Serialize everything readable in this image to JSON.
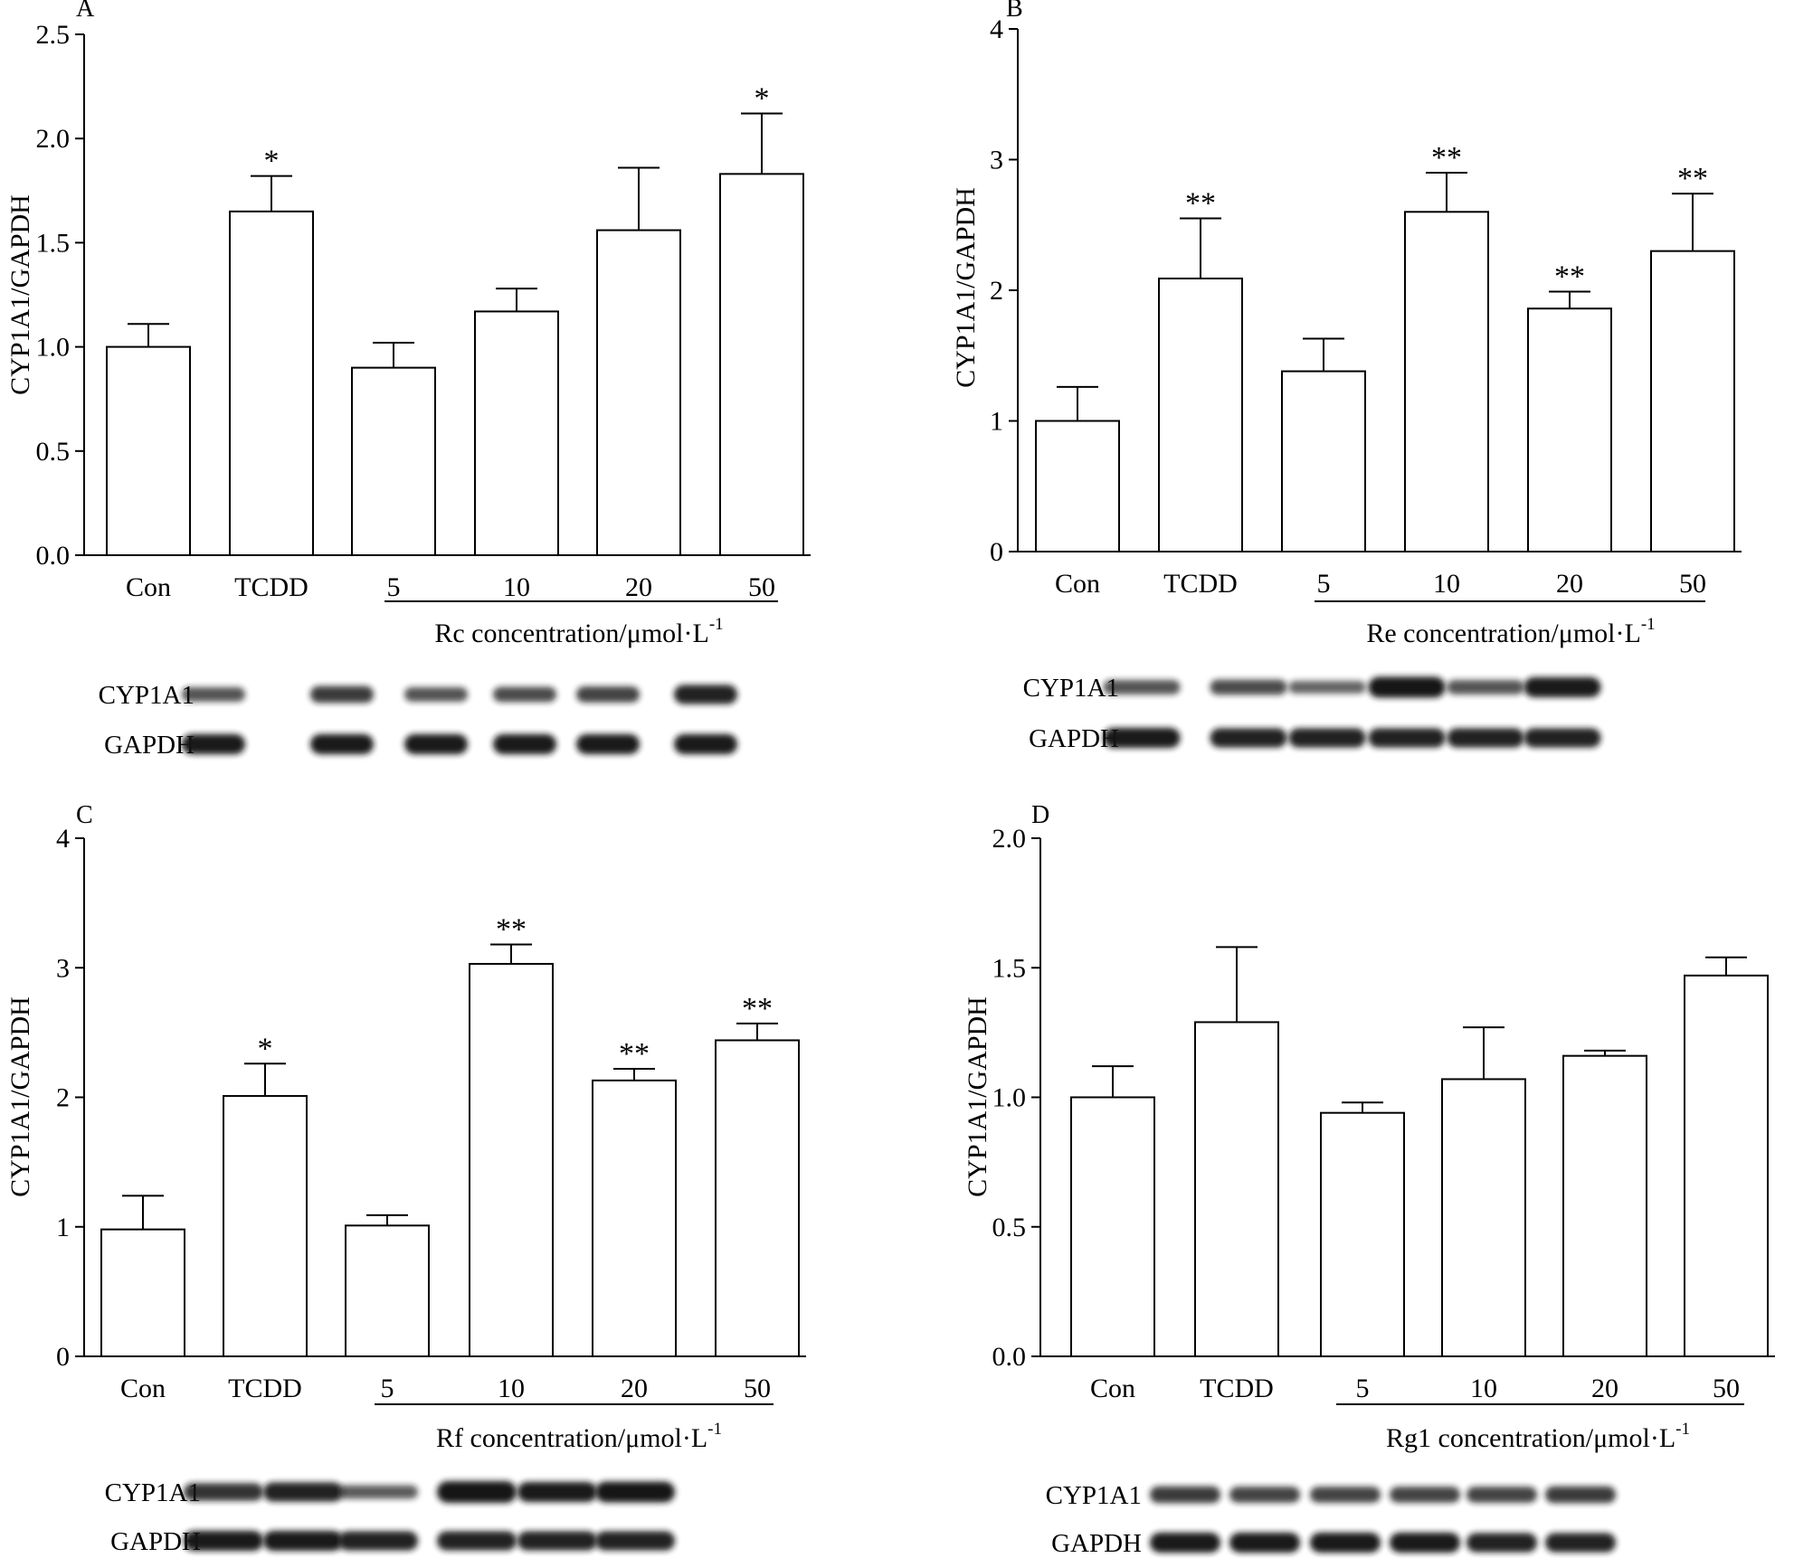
{
  "figure_description_colors": {
    "bar_fill": "#ffffff",
    "stroke": "#000000",
    "band": "#151515"
  },
  "chart_data": [
    {
      "panel": "A",
      "type": "bar",
      "ylabel": "CYP1A1/GAPDH",
      "xlabel": "Rc concentration/μmol·L",
      "xlabel_superscript": "-1",
      "categories": [
        "Con",
        "TCDD",
        "5",
        "10",
        "20",
        "50"
      ],
      "values": [
        1.0,
        1.65,
        0.9,
        1.17,
        1.56,
        1.83
      ],
      "errors": [
        0.11,
        0.17,
        0.12,
        0.11,
        0.3,
        0.29
      ],
      "significance": [
        "",
        "*",
        "",
        "",
        "",
        "*"
      ],
      "ylim": [
        0,
        2.5
      ],
      "yticks": [
        0.0,
        0.5,
        1.0,
        1.5,
        2.0,
        2.5
      ],
      "ytick_labels": [
        "0.0",
        "0.5",
        "1.0",
        "1.5",
        "2.0",
        "2.5"
      ],
      "blot": {
        "rows": [
          "CYP1A1",
          "GAPDH"
        ],
        "intensity": [
          [
            0.55,
            0.7,
            0.55,
            0.6,
            0.65,
            0.85
          ],
          [
            0.9,
            0.9,
            0.9,
            0.9,
            0.9,
            0.9
          ]
        ]
      }
    },
    {
      "panel": "B",
      "type": "bar",
      "ylabel": "CYP1A1/GAPDH",
      "xlabel": "Re concentration/μmol·L",
      "xlabel_superscript": "-1",
      "categories": [
        "Con",
        "TCDD",
        "5",
        "10",
        "20",
        "50"
      ],
      "values": [
        1.0,
        2.09,
        1.38,
        2.6,
        1.86,
        2.3
      ],
      "errors": [
        0.26,
        0.46,
        0.25,
        0.3,
        0.13,
        0.44
      ],
      "significance": [
        "",
        "**",
        "",
        "**",
        "**",
        "**"
      ],
      "ylim": [
        0,
        4
      ],
      "yticks": [
        0,
        1,
        2,
        3,
        4
      ],
      "ytick_labels": [
        "0",
        "1",
        "2",
        "3",
        "4"
      ],
      "blot": {
        "rows": [
          "CYP1A1",
          "GAPDH"
        ],
        "intensity": [
          [
            0.55,
            0.6,
            0.45,
            0.95,
            0.55,
            0.9
          ],
          [
            0.9,
            0.85,
            0.85,
            0.85,
            0.85,
            0.85
          ]
        ]
      }
    },
    {
      "panel": "C",
      "type": "bar",
      "ylabel": "CYP1A1/GAPDH",
      "xlabel": "Rf concentration/μmol·L",
      "xlabel_superscript": "-1",
      "categories": [
        "Con",
        "TCDD",
        "5",
        "10",
        "20",
        "50"
      ],
      "values": [
        0.98,
        2.01,
        1.01,
        3.03,
        2.13,
        2.44
      ],
      "errors": [
        0.26,
        0.25,
        0.08,
        0.15,
        0.09,
        0.13
      ],
      "significance": [
        "",
        "*",
        "",
        "**",
        "**",
        "**"
      ],
      "ylim": [
        0,
        4
      ],
      "yticks": [
        0,
        1,
        2,
        3,
        4
      ],
      "ytick_labels": [
        "0",
        "1",
        "2",
        "3",
        "4"
      ],
      "blot": {
        "rows": [
          "CYP1A1",
          "GAPDH"
        ],
        "intensity": [
          [
            0.75,
            0.85,
            0.5,
            1.0,
            0.9,
            0.95
          ],
          [
            0.9,
            0.9,
            0.85,
            0.85,
            0.85,
            0.85
          ]
        ]
      }
    },
    {
      "panel": "D",
      "type": "bar",
      "ylabel": "CYP1A1/GAPDH",
      "xlabel": "Rg1 concentration/μmol·L",
      "xlabel_superscript": "-1",
      "categories": [
        "Con",
        "TCDD",
        "5",
        "10",
        "20",
        "50"
      ],
      "values": [
        1.0,
        1.29,
        0.94,
        1.07,
        1.16,
        1.47
      ],
      "errors": [
        0.12,
        0.29,
        0.04,
        0.2,
        0.02,
        0.07
      ],
      "significance": [
        "",
        "",
        "",
        "",
        "",
        ""
      ],
      "ylim": [
        0,
        2.0
      ],
      "yticks": [
        0.0,
        0.5,
        1.0,
        1.5,
        2.0
      ],
      "ytick_labels": [
        "0.0",
        "0.5",
        "1.0",
        "1.5",
        "2.0"
      ],
      "blot": {
        "rows": [
          "CYP1A1",
          "GAPDH"
        ],
        "intensity": [
          [
            0.7,
            0.65,
            0.65,
            0.65,
            0.65,
            0.7
          ],
          [
            0.9,
            0.9,
            0.9,
            0.9,
            0.85,
            0.85
          ]
        ]
      }
    }
  ]
}
